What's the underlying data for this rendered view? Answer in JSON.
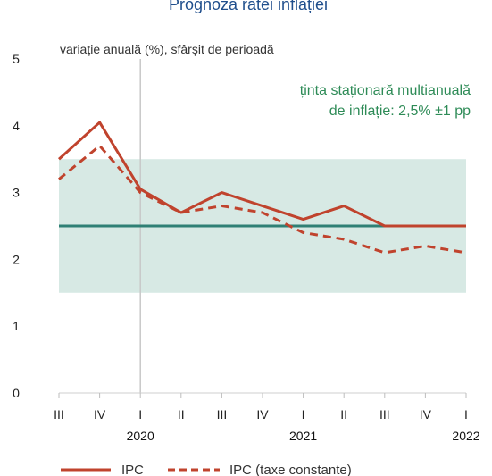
{
  "title": "Prognoza ratei inflației",
  "chart_data": {
    "type": "line",
    "title": "Prognoza ratei inflației",
    "ylabel": "variație anuală (%), sfârșit de perioadă",
    "xlabel": "",
    "ylim": [
      0,
      5
    ],
    "yticks": [
      "0",
      "1",
      "2",
      "3",
      "4",
      "5"
    ],
    "categories": [
      "III",
      "IV",
      "I",
      "II",
      "III",
      "IV",
      "I",
      "II",
      "III",
      "IV",
      "I"
    ],
    "years": [
      {
        "label": "2020",
        "at": 2
      },
      {
        "label": "2021",
        "at": 6
      },
      {
        "label": "2022",
        "at": 10
      }
    ],
    "series": [
      {
        "name": "IPC",
        "color": "#c0432d",
        "dash": false,
        "values": [
          3.5,
          4.05,
          3.05,
          2.7,
          3.0,
          2.8,
          2.6,
          2.8,
          2.5,
          2.5,
          2.5
        ]
      },
      {
        "name": "IPC (taxe constante)",
        "color": "#c0432d",
        "dash": true,
        "values": [
          3.2,
          3.7,
          3.0,
          2.7,
          2.8,
          2.7,
          2.4,
          2.3,
          2.1,
          2.2,
          2.1
        ]
      }
    ],
    "target": {
      "value": 2.5,
      "band": [
        1.5,
        3.5
      ],
      "label_line1": "ținta staționară multianuală",
      "label_line2": "de inflație: 2,5% ±1 pp",
      "band_color": "#d7e9e4",
      "line_color": "#2f8075"
    },
    "divider_at": 2,
    "grid": false,
    "legend_position": "bottom"
  }
}
